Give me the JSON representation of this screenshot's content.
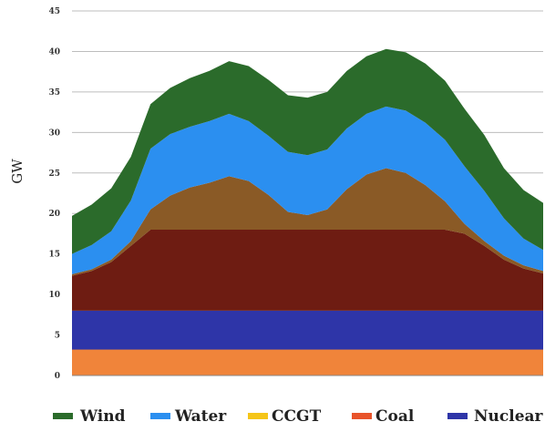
{
  "chart_data": {
    "type": "area",
    "stacked": true,
    "ylabel": "GW",
    "xlabel": "",
    "ylim": [
      0,
      45
    ],
    "yticks": [
      "0",
      "5",
      "10",
      "15",
      "20",
      "25",
      "30",
      "35",
      "40",
      "45"
    ],
    "grid": true,
    "legend_position": "bottom",
    "series": [
      {
        "name": "Nuclear",
        "color": "#2e35a8",
        "values": [
          8,
          8,
          8,
          8,
          8,
          8,
          8,
          8,
          8,
          8,
          8,
          8,
          8,
          8,
          8,
          8,
          8,
          8,
          8,
          8,
          8,
          8,
          8,
          8,
          8
        ]
      },
      {
        "name": "Coal",
        "color": "#6e1c12",
        "values": [
          4.3,
          4.9,
          6,
          8,
          10,
          10,
          10,
          10,
          10,
          10,
          10,
          10,
          10,
          10,
          10,
          10,
          10,
          10,
          10,
          10,
          9.5,
          8,
          6.3,
          5.2,
          4.6
        ]
      },
      {
        "name": "CCGT",
        "color": "#8a5a26",
        "values": [
          0.2,
          0.2,
          0.3,
          0.6,
          2.5,
          4.2,
          5.2,
          5.8,
          6.6,
          6,
          4.3,
          2.2,
          1.8,
          2.5,
          5,
          6.8,
          7.6,
          7,
          5.5,
          3.5,
          1.2,
          0.6,
          0.5,
          0.4,
          0.3
        ]
      },
      {
        "name": "Water",
        "color": "#2b8ff0",
        "values": [
          2.5,
          3,
          3.5,
          5,
          7.5,
          7.6,
          7.5,
          7.6,
          7.7,
          7.4,
          7.3,
          7.4,
          7.4,
          7.4,
          7.5,
          7.5,
          7.6,
          7.7,
          7.7,
          7.6,
          7.1,
          6.2,
          4.6,
          3.3,
          2.6
        ]
      },
      {
        "name": "Wind",
        "color": "#2b6b2b",
        "values": [
          4.7,
          5,
          5.3,
          5.4,
          5.5,
          5.7,
          6,
          6.2,
          6.5,
          6.8,
          6.9,
          7,
          7.1,
          7.1,
          7.1,
          7.1,
          7.1,
          7.2,
          7.3,
          7.3,
          7.1,
          6.9,
          6.2,
          6,
          5.8
        ]
      }
    ],
    "legend": [
      "Wind",
      "Water",
      "CCGT",
      "Coal",
      "Nuclear"
    ],
    "legend_colors": [
      "#2b6b2b",
      "#2b8ff0",
      "#f5c518",
      "#e8532a",
      "#2e35a8"
    ],
    "base_band": {
      "color": "#f0843a",
      "top_value": 3.2
    }
  }
}
